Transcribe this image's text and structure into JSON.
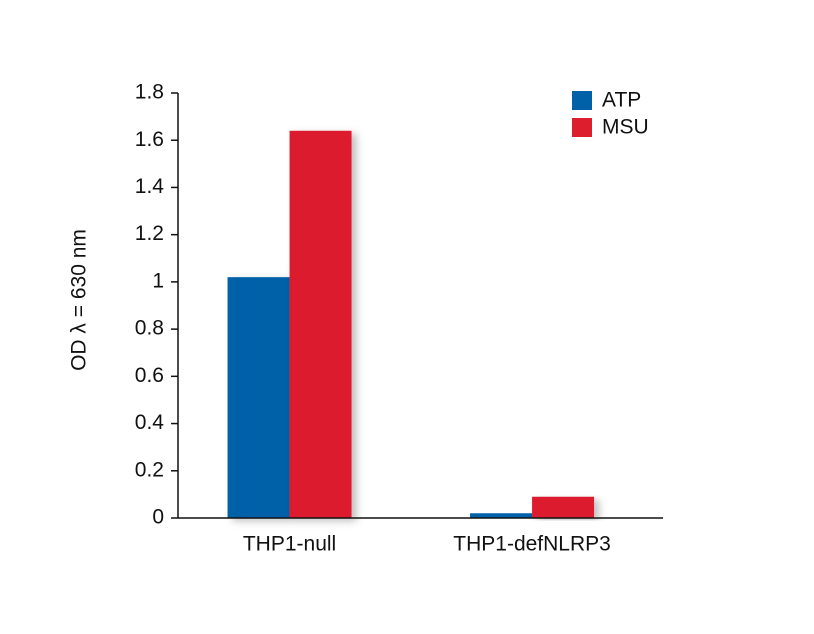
{
  "chart_data": {
    "type": "bar",
    "y_label": "OD  λ = 630 nm",
    "categories": [
      "THP1-null",
      "THP1-defNLRP3"
    ],
    "series": [
      {
        "name": "ATP",
        "color": "#0060a8",
        "values": [
          1.02,
          0.02
        ]
      },
      {
        "name": "MSU",
        "color": "#dc1e2d",
        "values": [
          1.64,
          0.09
        ]
      }
    ],
    "ylim": [
      0,
      1.8
    ],
    "yticks": [
      0,
      0.2,
      0.4,
      0.6,
      0.8,
      1,
      1.2,
      1.4,
      1.6,
      1.8
    ],
    "legend": "upper right"
  }
}
